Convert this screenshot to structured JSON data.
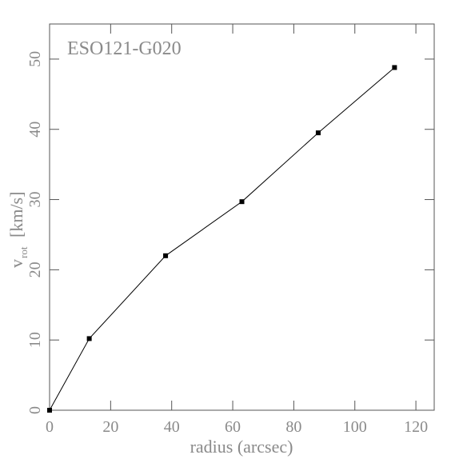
{
  "chart_data": {
    "type": "line",
    "annotation": "ESO121-G020",
    "xlabel": "radius (arcsec)",
    "ylabel": {
      "main": "v",
      "sub": "rot",
      "unit": "[km/s]"
    },
    "x": [
      0,
      13,
      38,
      63,
      88,
      113
    ],
    "series": [
      {
        "color": "#000000",
        "values": [
          0,
          10.2,
          22,
          29.7,
          39.5,
          48.8
        ]
      }
    ],
    "xlim": [
      0,
      126
    ],
    "xticks": [
      0,
      20,
      40,
      60,
      80,
      100,
      120
    ],
    "ylim": [
      0,
      55
    ],
    "yticks": [
      0,
      10,
      20,
      30,
      40,
      50
    ],
    "grid": false
  }
}
